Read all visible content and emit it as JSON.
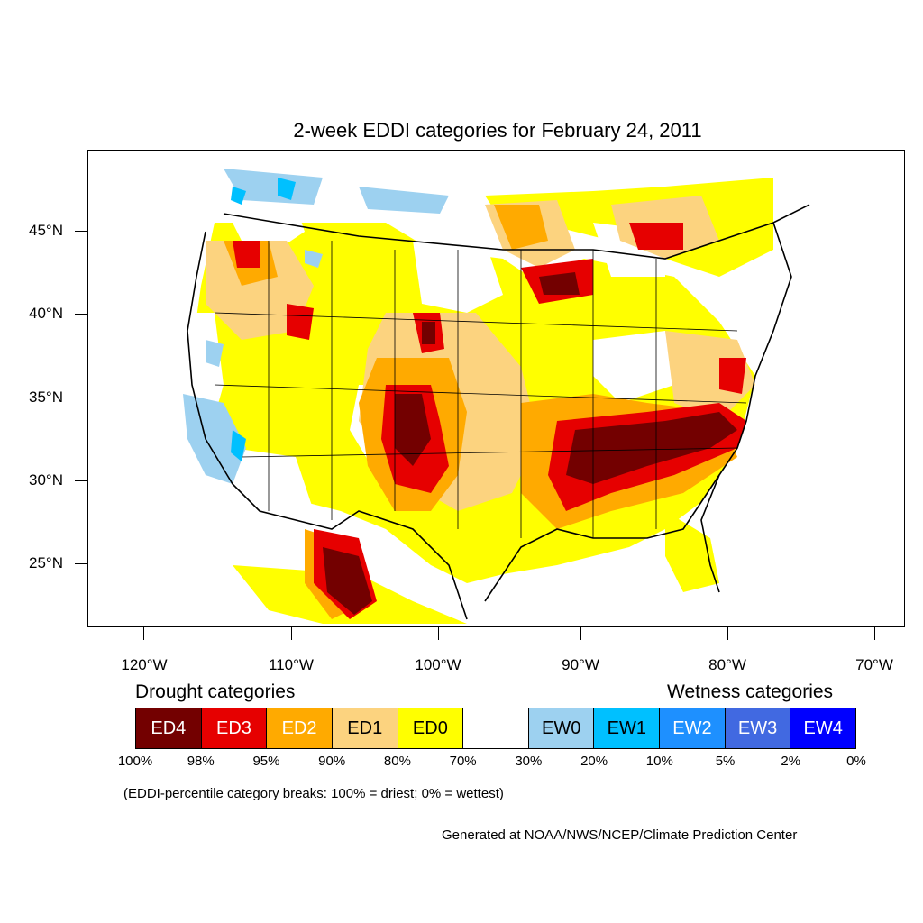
{
  "title": "2-week EDDI categories for February 24, 2011",
  "lat_labels": [
    "45°N",
    "40°N",
    "35°N",
    "30°N",
    "25°N"
  ],
  "lon_labels": [
    "120°W",
    "110°W",
    "100°W",
    "90°W",
    "80°W",
    "70°W"
  ],
  "legend": {
    "drought_heading": "Drought categories",
    "wetness_heading": "Wetness categories",
    "categories": [
      {
        "label": "ED4",
        "color": "#730000",
        "text_color": "#ffffff"
      },
      {
        "label": "ED3",
        "color": "#e60000",
        "text_color": "#ffffff"
      },
      {
        "label": "ED2",
        "color": "#ffaa00",
        "text_color": "#ffffff"
      },
      {
        "label": "ED1",
        "color": "#fcd37f",
        "text_color": "#000000"
      },
      {
        "label": "ED0",
        "color": "#ffff00",
        "text_color": "#000000"
      },
      {
        "label": "",
        "color": "#ffffff",
        "text_color": "#000000"
      },
      {
        "label": "EW0",
        "color": "#9dd1f0",
        "text_color": "#000000"
      },
      {
        "label": "EW1",
        "color": "#00c0ff",
        "text_color": "#000000"
      },
      {
        "label": "EW2",
        "color": "#1e90ff",
        "text_color": "#ffffff"
      },
      {
        "label": "EW3",
        "color": "#4169e1",
        "text_color": "#ffffff"
      },
      {
        "label": "EW4",
        "color": "#0000ff",
        "text_color": "#ffffff"
      }
    ],
    "breaks": [
      "100%",
      "98%",
      "95%",
      "90%",
      "80%",
      "70%",
      "30%",
      "20%",
      "10%",
      "5%",
      "2%",
      "0%"
    ],
    "note": "(EDDI-percentile category breaks: 100% = driest; 0% = wettest)"
  },
  "credit": "Generated at NOAA/NWS/NCEP/Climate Prediction Center"
}
